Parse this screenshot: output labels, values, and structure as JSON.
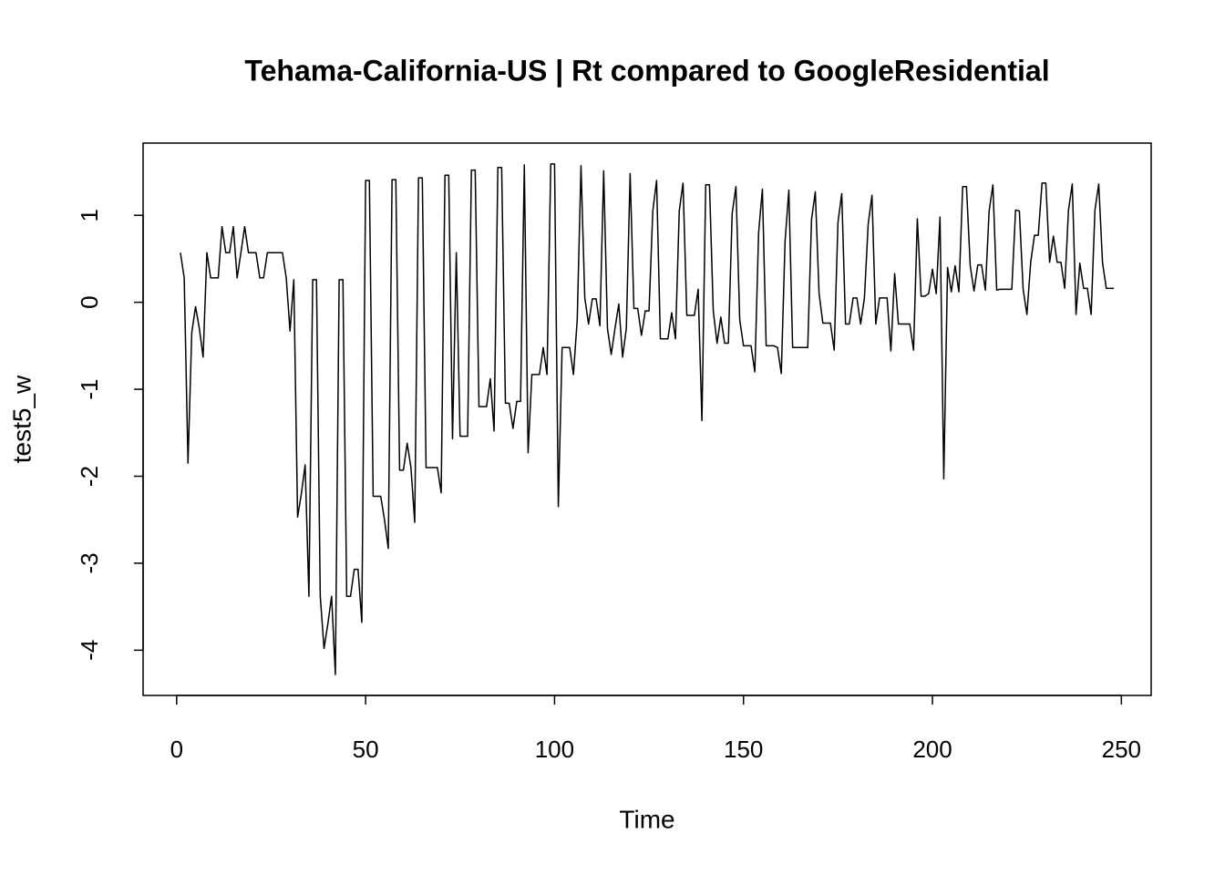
{
  "chart_data": {
    "type": "line",
    "title": "Tehama-California-US | Rt compared to GoogleResidential",
    "x_label": "Time",
    "y_label": "test5_w",
    "x": [
      1,
      2,
      3,
      4,
      5,
      6,
      7,
      8,
      9,
      10,
      11,
      12,
      13,
      14,
      15,
      16,
      17,
      18,
      19,
      20,
      21,
      22,
      23,
      24,
      25,
      26,
      27,
      28,
      29,
      30,
      31,
      32,
      33,
      34,
      35,
      36,
      37,
      38,
      39,
      40,
      41,
      42,
      43,
      44,
      45,
      46,
      47,
      48,
      49,
      50,
      51,
      52,
      53,
      54,
      55,
      56,
      57,
      58,
      59,
      60,
      61,
      62,
      63,
      64,
      65,
      66,
      67,
      68,
      69,
      70,
      71,
      72,
      73,
      74,
      75,
      76,
      77,
      78,
      79,
      80,
      81,
      82,
      83,
      84,
      85,
      86,
      87,
      88,
      89,
      90,
      91,
      92,
      93,
      94,
      95,
      96,
      97,
      98,
      99,
      100,
      101,
      102,
      103,
      104,
      105,
      106,
      107,
      108,
      109,
      110,
      111,
      112,
      113,
      114,
      115,
      116,
      117,
      118,
      119,
      120,
      121,
      122,
      123,
      124,
      125,
      126,
      127,
      128,
      129,
      130,
      131,
      132,
      133,
      134,
      135,
      136,
      137,
      138,
      139,
      140,
      141,
      142,
      143,
      144,
      145,
      146,
      147,
      148,
      149,
      150,
      151,
      152,
      153,
      154,
      155,
      156,
      157,
      158,
      159,
      160,
      161,
      162,
      163,
      164,
      165,
      166,
      167,
      168,
      169,
      170,
      171,
      172,
      173,
      174,
      175,
      176,
      177,
      178,
      179,
      180,
      181,
      182,
      183,
      184,
      185,
      186,
      187,
      188,
      189,
      190,
      191,
      192,
      193,
      194,
      195,
      196,
      197,
      198,
      199,
      200,
      201,
      202,
      203,
      204,
      205,
      206,
      207,
      208,
      209,
      210,
      211,
      212,
      213,
      214,
      215,
      216,
      217,
      218,
      219,
      220,
      221,
      222,
      223,
      224,
      225,
      226,
      227,
      228,
      229,
      230,
      231,
      232,
      233,
      234,
      235,
      236,
      237,
      238,
      239,
      240,
      241,
      242,
      243,
      244,
      245,
      246,
      247,
      248
    ],
    "series": [
      {
        "name": "test5_w",
        "color": "#000000",
        "values": [
          0.57,
          0.28,
          -1.85,
          -0.35,
          -0.05,
          -0.3,
          -0.63,
          0.57,
          0.28,
          0.28,
          0.28,
          0.87,
          0.57,
          0.57,
          0.87,
          0.28,
          0.57,
          0.87,
          0.57,
          0.57,
          0.57,
          0.28,
          0.28,
          0.57,
          0.57,
          0.57,
          0.57,
          0.57,
          0.28,
          -0.33,
          0.26,
          -2.47,
          -2.2,
          -1.87,
          -3.38,
          0.26,
          0.26,
          -3.38,
          -3.98,
          -3.7,
          -3.38,
          -4.28,
          0.26,
          0.26,
          -3.38,
          -3.38,
          -3.07,
          -3.07,
          -3.68,
          1.4,
          1.4,
          -2.23,
          -2.23,
          -2.23,
          -2.5,
          -2.83,
          1.41,
          1.41,
          -1.93,
          -1.93,
          -1.62,
          -1.9,
          -2.53,
          1.43,
          1.43,
          -1.9,
          -1.9,
          -1.9,
          -1.9,
          -2.19,
          1.46,
          1.46,
          -1.57,
          0.57,
          -1.54,
          -1.54,
          -1.54,
          1.52,
          1.52,
          -1.2,
          -1.2,
          -1.2,
          -0.88,
          -1.48,
          1.55,
          1.55,
          -1.16,
          -1.16,
          -1.45,
          -1.14,
          -1.14,
          1.58,
          -1.73,
          -0.83,
          -0.83,
          -0.83,
          -0.52,
          -0.83,
          1.59,
          1.59,
          -2.35,
          -0.52,
          -0.52,
          -0.52,
          -0.83,
          -0.2,
          1.57,
          0.05,
          -0.25,
          0.04,
          0.04,
          -0.27,
          1.51,
          -0.3,
          -0.6,
          -0.3,
          -0.02,
          -0.63,
          -0.3,
          1.48,
          -0.07,
          -0.07,
          -0.38,
          -0.1,
          -0.1,
          1.05,
          1.4,
          -0.42,
          -0.42,
          -0.42,
          -0.12,
          -0.42,
          1.05,
          1.37,
          -0.15,
          -0.15,
          -0.15,
          0.15,
          -1.36,
          1.35,
          1.35,
          -0.1,
          -0.47,
          -0.17,
          -0.47,
          -0.47,
          1.02,
          1.33,
          -0.2,
          -0.5,
          -0.5,
          -0.5,
          -0.8,
          0.8,
          1.3,
          -0.5,
          -0.5,
          -0.5,
          -0.52,
          -0.82,
          0.7,
          1.29,
          -0.52,
          -0.52,
          -0.52,
          -0.52,
          -0.52,
          0.95,
          1.27,
          0.1,
          -0.24,
          -0.24,
          -0.24,
          -0.55,
          0.92,
          1.25,
          -0.25,
          -0.25,
          0.05,
          0.05,
          -0.25,
          0.05,
          0.9,
          1.23,
          -0.25,
          0.05,
          0.05,
          0.05,
          -0.56,
          0.33,
          -0.25,
          -0.25,
          -0.25,
          -0.25,
          -0.55,
          0.96,
          0.07,
          0.07,
          0.1,
          0.38,
          0.1,
          0.98,
          -2.03,
          0.4,
          0.12,
          0.42,
          0.12,
          1.33,
          1.33,
          0.42,
          0.13,
          0.43,
          0.43,
          0.14,
          1.05,
          1.35,
          0.14,
          0.15,
          0.15,
          0.15,
          0.15,
          1.06,
          1.05,
          0.15,
          -0.14,
          0.46,
          0.77,
          0.77,
          1.37,
          1.37,
          0.46,
          0.76,
          0.46,
          0.46,
          0.16,
          1.06,
          1.36,
          -0.14,
          0.45,
          0.16,
          0.16,
          -0.14,
          1.06,
          1.36,
          0.46,
          0.16,
          0.16,
          0.16
        ]
      }
    ],
    "xlim": [
      -8.88,
      257.88
    ],
    "ylim": [
      -4.52,
      1.83
    ],
    "xticks": [
      0,
      50,
      100,
      150,
      200,
      250
    ],
    "yticks": [
      -4,
      -3,
      -2,
      -1,
      0,
      1
    ],
    "grid": false
  }
}
